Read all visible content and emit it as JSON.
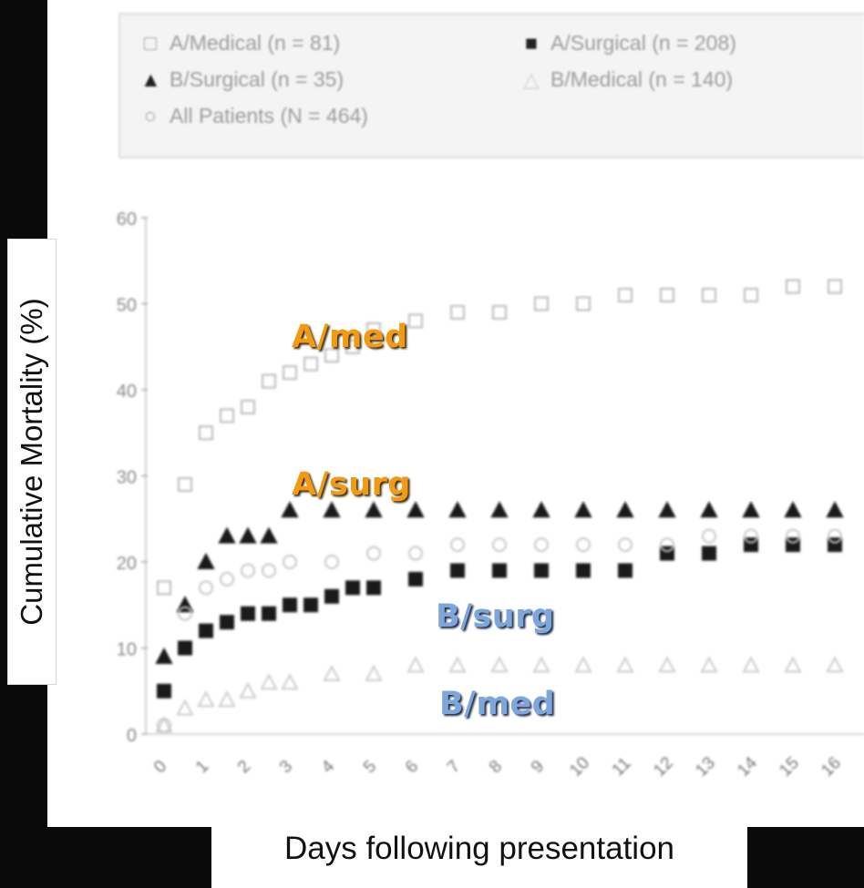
{
  "chart_data": {
    "type": "scatter",
    "ylabel": "Cumulative Mortality (%)",
    "xlabel": "Days following presentation",
    "ylim": [
      0,
      60
    ],
    "yticks": [
      0,
      10,
      20,
      30,
      40,
      50,
      60
    ],
    "xticks": [
      "0",
      "1",
      "2",
      "3",
      "4",
      "5",
      "6",
      "7",
      "8",
      "9",
      "10",
      "11",
      "12",
      "13",
      "14",
      "15",
      "16"
    ],
    "legend_position": "top",
    "legend": [
      {
        "label": "A/Medical (n = 81)",
        "marker": "open-square"
      },
      {
        "label": "A/Surgical (n = 208)",
        "marker": "filled-square"
      },
      {
        "label": "B/Surgical (n = 35)",
        "marker": "filled-triangle"
      },
      {
        "label": "B/Medical (n = 140)",
        "marker": "open-triangle"
      },
      {
        "label": "All Patients (N = 464)",
        "marker": "open-circle"
      }
    ],
    "annotations": [
      "A/med",
      "A/surg",
      "B/surg",
      "B/med"
    ],
    "series": [
      {
        "name": "A/Medical (n = 81)",
        "marker": "open-square",
        "x": [
          0,
          0.5,
          1,
          1.5,
          2,
          2.5,
          3,
          3.5,
          4,
          4.5,
          5,
          6,
          7,
          8,
          9,
          10,
          11,
          12,
          13,
          14,
          15,
          16
        ],
        "y": [
          17,
          29,
          35,
          37,
          38,
          41,
          42,
          43,
          44,
          45,
          47,
          48,
          49,
          49,
          50,
          50,
          51,
          51,
          51,
          51,
          52,
          52
        ]
      },
      {
        "name": "A/Surgical (n = 208)",
        "marker": "filled-square",
        "x": [
          0,
          0.5,
          1,
          1.5,
          2,
          2.5,
          3,
          3.5,
          4,
          4.5,
          5,
          6,
          7,
          8,
          9,
          10,
          11,
          12,
          13,
          14,
          15,
          16
        ],
        "y": [
          5,
          10,
          12,
          13,
          14,
          14,
          15,
          15,
          16,
          17,
          17,
          18,
          19,
          19,
          19,
          19,
          19,
          21,
          21,
          22,
          22,
          22
        ]
      },
      {
        "name": "B/Surgical (n = 35)",
        "marker": "filled-triangle",
        "x": [
          0,
          0.5,
          1,
          1.5,
          2,
          2.5,
          3,
          4,
          5,
          6,
          7,
          8,
          9,
          10,
          11,
          12,
          13,
          14,
          15,
          16
        ],
        "y": [
          9,
          15,
          20,
          23,
          23,
          23,
          26,
          26,
          26,
          26,
          26,
          26,
          26,
          26,
          26,
          26,
          26,
          26,
          26,
          26
        ]
      },
      {
        "name": "B/Medical (n = 140)",
        "marker": "open-triangle",
        "x": [
          0,
          0.5,
          1,
          1.5,
          2,
          2.5,
          3,
          4,
          5,
          6,
          7,
          8,
          9,
          10,
          11,
          12,
          13,
          14,
          15,
          16
        ],
        "y": [
          1,
          3,
          4,
          4,
          5,
          6,
          6,
          7,
          7,
          8,
          8,
          8,
          8,
          8,
          8,
          8,
          8,
          8,
          8,
          8
        ]
      },
      {
        "name": "All Patients (N = 464)",
        "marker": "open-circle",
        "x": [
          0,
          0.5,
          1,
          1.5,
          2,
          2.5,
          3,
          4,
          5,
          6,
          7,
          8,
          9,
          10,
          11,
          12,
          13,
          14,
          15,
          16
        ],
        "y": [
          1,
          14,
          17,
          18,
          19,
          19,
          20,
          20,
          21,
          21,
          22,
          22,
          22,
          22,
          22,
          22,
          23,
          23,
          23,
          23
        ]
      }
    ]
  }
}
